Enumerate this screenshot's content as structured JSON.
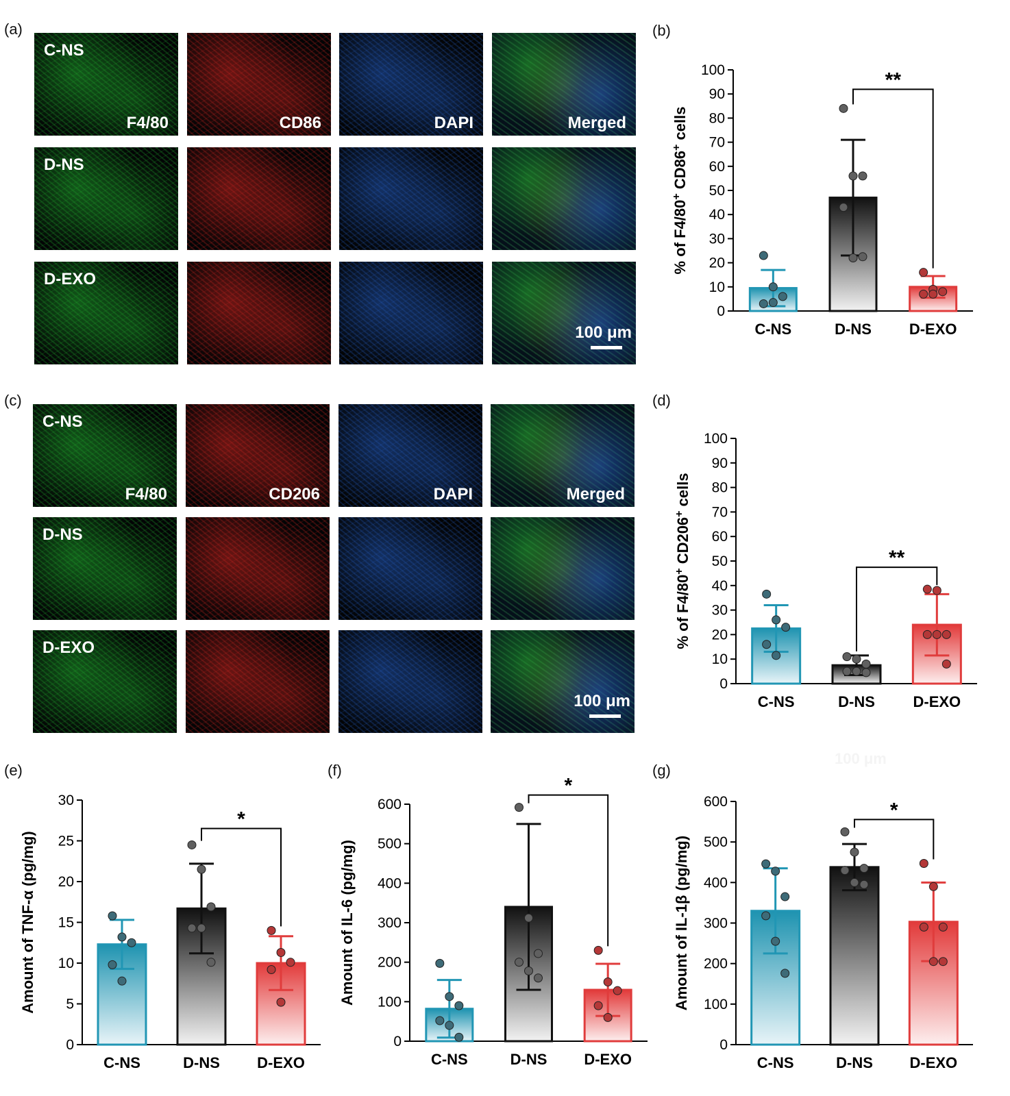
{
  "panel_labels": [
    "(a)",
    "(b)",
    "(c)",
    "(d)",
    "(e)",
    "(f)",
    "(g)"
  ],
  "ghost_text": "100 μm",
  "colors": {
    "cns": "#2196b4",
    "dns": "#111111",
    "dexo": "#e03c3c",
    "green": "#1fa82c",
    "red": "#c8241f",
    "blue": "#2258b8"
  },
  "micrographs": [
    {
      "panel": "(a)",
      "channels": [
        "F4/80",
        "CD86",
        "DAPI",
        "Merged"
      ],
      "groups": [
        "C-NS",
        "D-NS",
        "D-EXO"
      ],
      "scale_bar": "100 μm"
    },
    {
      "panel": "(c)",
      "channels": [
        "F4/80",
        "CD206",
        "DAPI",
        "Merged"
      ],
      "groups": [
        "C-NS",
        "D-NS",
        "D-EXO"
      ],
      "scale_bar": "100 μm"
    }
  ],
  "chart_data": [
    {
      "id": "b",
      "type": "bar",
      "categories": [
        "C-NS",
        "D-NS",
        "D-EXO"
      ],
      "values": [
        9.5,
        47,
        10
      ],
      "errors": [
        7.5,
        24,
        4.5
      ],
      "points": [
        [
          23,
          10,
          6,
          3,
          3.5
        ],
        [
          84,
          56,
          56,
          43,
          22,
          22.5
        ],
        [
          16,
          9,
          8,
          7,
          7
        ]
      ],
      "ylabel": "% of F4/80+ CD86+ cells",
      "ylim": [
        0,
        100
      ],
      "yticks": [
        0,
        10,
        20,
        30,
        40,
        50,
        60,
        70,
        80,
        90,
        100
      ],
      "significance": {
        "from": 1,
        "to": 2,
        "label": "**"
      }
    },
    {
      "id": "d",
      "type": "bar",
      "categories": [
        "C-NS",
        "D-NS",
        "D-EXO"
      ],
      "values": [
        22.5,
        7.5,
        24
      ],
      "errors": [
        9.5,
        4,
        12.5
      ],
      "points": [
        [
          36.5,
          26,
          23,
          16,
          11.5
        ],
        [
          11,
          10,
          8,
          5,
          5,
          4.5
        ],
        [
          38.5,
          38,
          20,
          20,
          20,
          8
        ]
      ],
      "ylabel": "% of F4/80+ CD206+ cells",
      "ylim": [
        0,
        100
      ],
      "yticks": [
        0,
        10,
        20,
        30,
        40,
        50,
        60,
        70,
        80,
        90,
        100
      ],
      "significance": {
        "from": 1,
        "to": 2,
        "label": "**"
      }
    },
    {
      "id": "e",
      "type": "bar",
      "categories": [
        "C-NS",
        "D-NS",
        "D-EXO"
      ],
      "values": [
        12.3,
        16.7,
        10
      ],
      "errors": [
        3,
        5.5,
        3.3
      ],
      "points": [
        [
          15.8,
          13.2,
          12.5,
          9.8,
          7.8
        ],
        [
          24.5,
          21.5,
          16.9,
          14.3,
          14.3,
          10.1
        ],
        [
          14,
          11.3,
          10.1,
          9.2,
          5.2
        ]
      ],
      "ylabel": "Amount of TNF-α (pg/mg)",
      "ylim": [
        0,
        30
      ],
      "yticks": [
        0,
        5,
        10,
        15,
        20,
        25,
        30
      ],
      "significance": {
        "from": 1,
        "to": 2,
        "label": "*"
      }
    },
    {
      "id": "f",
      "type": "bar",
      "categories": [
        "C-NS",
        "D-NS",
        "D-EXO"
      ],
      "values": [
        82,
        340,
        130
      ],
      "errors": [
        73,
        210,
        66
      ],
      "points": [
        [
          197,
          113,
          90,
          52,
          40,
          10
        ],
        [
          592,
          312,
          222,
          200,
          178,
          160
        ],
        [
          230,
          150,
          128,
          90,
          60
        ]
      ],
      "ylabel": "Amount of IL-6 (pg/mg)",
      "ylim": [
        0,
        600
      ],
      "yticks": [
        0,
        100,
        200,
        300,
        400,
        500,
        600
      ],
      "significance": {
        "from": 1,
        "to": 2,
        "label": "*"
      }
    },
    {
      "id": "g",
      "type": "bar",
      "categories": [
        "C-NS",
        "D-NS",
        "D-EXO"
      ],
      "values": [
        330,
        438,
        303
      ],
      "errors": [
        105,
        57,
        97
      ],
      "points": [
        [
          446,
          428,
          365,
          318,
          255,
          176
        ],
        [
          525,
          475,
          435,
          430,
          400,
          395
        ],
        [
          447,
          390,
          290,
          290,
          205,
          205
        ]
      ],
      "ylabel": "Amount of IL-1β (pg/mg)",
      "ylim": [
        0,
        600
      ],
      "yticks": [
        0,
        100,
        200,
        300,
        400,
        500,
        600
      ],
      "significance": {
        "from": 1,
        "to": 2,
        "label": "*"
      }
    }
  ]
}
